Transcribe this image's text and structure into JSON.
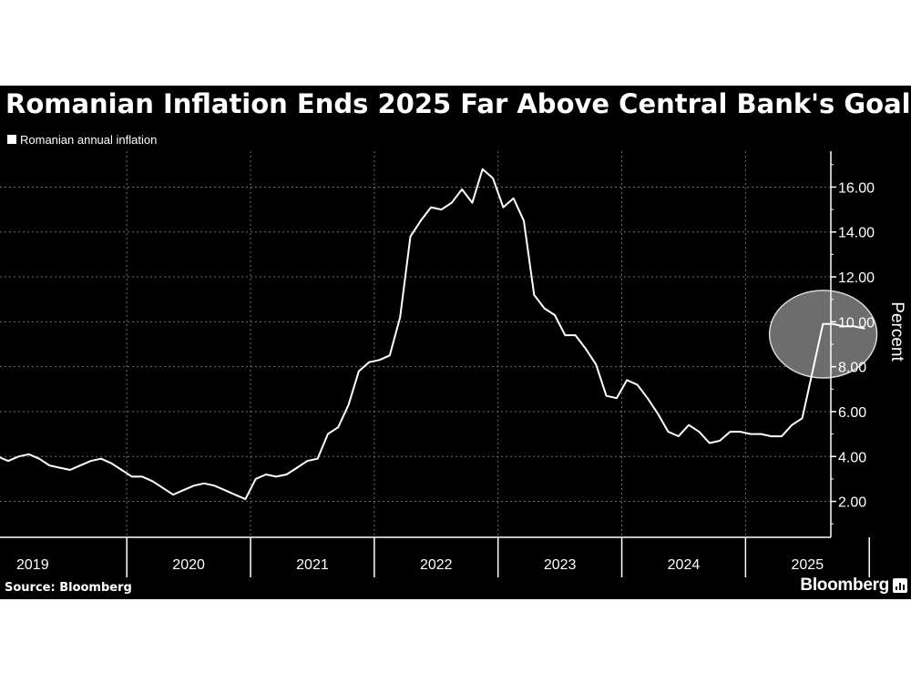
{
  "title": "Romanian Inflation Ends 2025 Far Above Central Bank's Goal",
  "source": "Source: Bloomberg",
  "brand": "Bloomberg",
  "colors": {
    "background": "#000000",
    "line": "#ffffff",
    "grid": "#6e6e6e",
    "highlight_fill": "#6d6d6d"
  },
  "chart_data": {
    "type": "line",
    "ylabel": "Percent",
    "ylim": [
      0.4,
      17.6
    ],
    "yticks": [
      2,
      4,
      6,
      8,
      10,
      12,
      14,
      16
    ],
    "ytick_labels": [
      "2.00",
      "4.00",
      "6.00",
      "8.00",
      "10.00",
      "12.00",
      "14.00",
      "16.00"
    ],
    "x_years": [
      "2019",
      "2020",
      "2021",
      "2022",
      "2023",
      "2024",
      "2025"
    ],
    "grid": true,
    "legend": "top-left",
    "highlight": {
      "type": "circle",
      "around": "2025 values",
      "x_range": [
        "2025-03",
        "2025-12"
      ],
      "y_range": [
        7.5,
        11.4
      ]
    },
    "series": [
      {
        "name": "Romanian annual inflation",
        "points": [
          [
            "2018-12",
            4.0
          ],
          [
            "2019-01",
            3.8
          ],
          [
            "2019-02",
            4.0
          ],
          [
            "2019-03",
            4.1
          ],
          [
            "2019-04",
            3.9
          ],
          [
            "2019-05",
            3.6
          ],
          [
            "2019-06",
            3.5
          ],
          [
            "2019-07",
            3.4
          ],
          [
            "2019-08",
            3.6
          ],
          [
            "2019-09",
            3.8
          ],
          [
            "2019-10",
            3.9
          ],
          [
            "2019-11",
            3.7
          ],
          [
            "2019-12",
            3.4
          ],
          [
            "2020-01",
            3.1
          ],
          [
            "2020-02",
            3.1
          ],
          [
            "2020-03",
            2.9
          ],
          [
            "2020-04",
            2.6
          ],
          [
            "2020-05",
            2.3
          ],
          [
            "2020-06",
            2.5
          ],
          [
            "2020-07",
            2.7
          ],
          [
            "2020-08",
            2.8
          ],
          [
            "2020-09",
            2.7
          ],
          [
            "2020-10",
            2.5
          ],
          [
            "2020-11",
            2.3
          ],
          [
            "2020-12",
            2.1
          ],
          [
            "2021-01",
            3.0
          ],
          [
            "2021-02",
            3.2
          ],
          [
            "2021-03",
            3.1
          ],
          [
            "2021-04",
            3.2
          ],
          [
            "2021-05",
            3.5
          ],
          [
            "2021-06",
            3.8
          ],
          [
            "2021-07",
            3.9
          ],
          [
            "2021-08",
            5.0
          ],
          [
            "2021-09",
            5.3
          ],
          [
            "2021-10",
            6.3
          ],
          [
            "2021-11",
            7.8
          ],
          [
            "2021-12",
            8.2
          ],
          [
            "2022-01",
            8.3
          ],
          [
            "2022-02",
            8.5
          ],
          [
            "2022-03",
            10.2
          ],
          [
            "2022-04",
            13.8
          ],
          [
            "2022-05",
            14.5
          ],
          [
            "2022-06",
            15.1
          ],
          [
            "2022-07",
            15.0
          ],
          [
            "2022-08",
            15.3
          ],
          [
            "2022-09",
            15.9
          ],
          [
            "2022-10",
            15.3
          ],
          [
            "2022-11",
            16.8
          ],
          [
            "2022-12",
            16.4
          ],
          [
            "2023-01",
            15.1
          ],
          [
            "2023-02",
            15.5
          ],
          [
            "2023-03",
            14.5
          ],
          [
            "2023-04",
            11.2
          ],
          [
            "2023-05",
            10.6
          ],
          [
            "2023-06",
            10.3
          ],
          [
            "2023-07",
            9.4
          ],
          [
            "2023-08",
            9.4
          ],
          [
            "2023-09",
            8.8
          ],
          [
            "2023-10",
            8.1
          ],
          [
            "2023-11",
            6.7
          ],
          [
            "2023-12",
            6.6
          ],
          [
            "2024-01",
            7.4
          ],
          [
            "2024-02",
            7.2
          ],
          [
            "2024-03",
            6.6
          ],
          [
            "2024-04",
            5.9
          ],
          [
            "2024-05",
            5.1
          ],
          [
            "2024-06",
            4.9
          ],
          [
            "2024-07",
            5.4
          ],
          [
            "2024-08",
            5.1
          ],
          [
            "2024-09",
            4.6
          ],
          [
            "2024-10",
            4.7
          ],
          [
            "2024-11",
            5.1
          ],
          [
            "2024-12",
            5.1
          ],
          [
            "2025-01",
            5.0
          ],
          [
            "2025-02",
            5.0
          ],
          [
            "2025-03",
            4.9
          ],
          [
            "2025-04",
            4.9
          ],
          [
            "2025-05",
            5.4
          ],
          [
            "2025-06",
            5.7
          ],
          [
            "2025-07",
            7.8
          ],
          [
            "2025-08",
            9.9
          ],
          [
            "2025-09",
            9.9
          ],
          [
            "2025-10",
            9.8
          ],
          [
            "2025-11",
            9.8
          ],
          [
            "2025-12",
            9.7
          ]
        ]
      }
    ]
  }
}
